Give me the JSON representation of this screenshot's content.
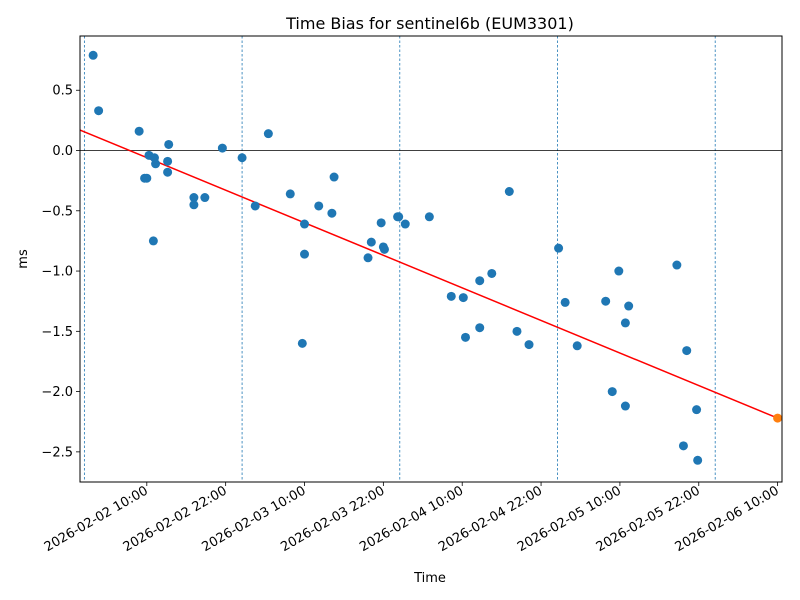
{
  "chart_data": {
    "type": "scatter",
    "title": "Time Bias for sentinel6b (EUM3301)",
    "xlabel": "Time",
    "ylabel": "ms",
    "x_is_time": true,
    "xlim": [
      "2026-02-01T23:50",
      "2026-02-06T10:40"
    ],
    "ylim": [
      -2.75,
      0.95
    ],
    "yticks": [
      -2.5,
      -2.0,
      -1.5,
      -1.0,
      -0.5,
      0.0,
      0.5
    ],
    "ytick_labels": [
      "−2.5",
      "−2.0",
      "−1.5",
      "−1.0",
      "−0.5",
      "0.0",
      "0.5"
    ],
    "xticks": [
      "2026-02-02T10:00",
      "2026-02-02T22:00",
      "2026-02-03T10:00",
      "2026-02-03T22:00",
      "2026-02-04T10:00",
      "2026-02-04T22:00",
      "2026-02-05T10:00",
      "2026-02-05T22:00",
      "2026-02-06T10:00"
    ],
    "xtick_labels": [
      "2026-02-02 10:00",
      "2026-02-02 22:00",
      "2026-02-03 10:00",
      "2026-02-03 22:00",
      "2026-02-04 10:00",
      "2026-02-04 22:00",
      "2026-02-05 10:00",
      "2026-02-05 22:00",
      "2026-02-06 10:00"
    ],
    "vlines": [
      "2026-02-02T00:30",
      "2026-02-03T00:30",
      "2026-02-04T00:30",
      "2026-02-05T00:30",
      "2026-02-06T00:30"
    ],
    "hline_y": 0.0,
    "grid": false,
    "legend": "none",
    "colors": {
      "points": "#1f77b4",
      "fit": "#ff0000",
      "prediction": "#ff7f0e",
      "vlines": "#1f77b4",
      "hline": "#000000"
    },
    "series": [
      {
        "type": "scatter",
        "points": [
          [
            "2026-02-02T01:50",
            0.79
          ],
          [
            "2026-02-02T02:40",
            0.33
          ],
          [
            "2026-02-02T08:50",
            0.16
          ],
          [
            "2026-02-02T09:40",
            -0.23
          ],
          [
            "2026-02-02T10:00",
            -0.23
          ],
          [
            "2026-02-02T10:20",
            -0.04
          ],
          [
            "2026-02-02T11:10",
            -0.06
          ],
          [
            "2026-02-02T11:20",
            -0.11
          ],
          [
            "2026-02-02T11:00",
            -0.75
          ],
          [
            "2026-02-02T13:20",
            0.05
          ],
          [
            "2026-02-02T13:10",
            -0.09
          ],
          [
            "2026-02-02T13:10",
            -0.18
          ],
          [
            "2026-02-02T17:10",
            -0.39
          ],
          [
            "2026-02-02T17:10",
            -0.45
          ],
          [
            "2026-02-02T18:50",
            -0.39
          ],
          [
            "2026-02-02T21:30",
            0.02
          ],
          [
            "2026-02-03T00:30",
            -0.06
          ],
          [
            "2026-02-03T02:30",
            -0.46
          ],
          [
            "2026-02-03T04:30",
            0.14
          ],
          [
            "2026-02-03T07:50",
            -0.36
          ],
          [
            "2026-02-03T10:00",
            -0.61
          ],
          [
            "2026-02-03T10:00",
            -0.86
          ],
          [
            "2026-02-03T09:40",
            -1.6
          ],
          [
            "2026-02-03T12:10",
            -0.46
          ],
          [
            "2026-02-03T14:10",
            -0.52
          ],
          [
            "2026-02-03T14:30",
            -0.22
          ],
          [
            "2026-02-03T19:40",
            -0.89
          ],
          [
            "2026-02-03T20:10",
            -0.76
          ],
          [
            "2026-02-03T21:40",
            -0.6
          ],
          [
            "2026-02-03T22:00",
            -0.8
          ],
          [
            "2026-02-03T22:10",
            -0.82
          ],
          [
            "2026-02-04T00:10",
            -0.55
          ],
          [
            "2026-02-04T00:20",
            -0.55
          ],
          [
            "2026-02-04T01:20",
            -0.61
          ],
          [
            "2026-02-04T05:00",
            -0.55
          ],
          [
            "2026-02-04T08:20",
            -1.21
          ],
          [
            "2026-02-04T10:10",
            -1.22
          ],
          [
            "2026-02-04T10:30",
            -1.55
          ],
          [
            "2026-02-04T12:40",
            -1.08
          ],
          [
            "2026-02-04T12:40",
            -1.47
          ],
          [
            "2026-02-04T14:30",
            -1.02
          ],
          [
            "2026-02-04T17:10",
            -0.34
          ],
          [
            "2026-02-04T18:20",
            -1.5
          ],
          [
            "2026-02-04T20:10",
            -1.61
          ],
          [
            "2026-02-05T00:40",
            -0.81
          ],
          [
            "2026-02-05T01:40",
            -1.26
          ],
          [
            "2026-02-05T03:30",
            -1.62
          ],
          [
            "2026-02-05T07:50",
            -1.25
          ],
          [
            "2026-02-05T08:50",
            -2.0
          ],
          [
            "2026-02-05T09:50",
            -1.0
          ],
          [
            "2026-02-05T10:50",
            -2.12
          ],
          [
            "2026-02-05T10:50",
            -1.43
          ],
          [
            "2026-02-05T11:20",
            -1.29
          ],
          [
            "2026-02-05T18:40",
            -0.95
          ],
          [
            "2026-02-05T19:40",
            -2.45
          ],
          [
            "2026-02-05T20:10",
            -1.66
          ],
          [
            "2026-02-05T21:40",
            -2.15
          ],
          [
            "2026-02-05T21:50",
            -2.57
          ]
        ]
      },
      {
        "type": "line",
        "points": [
          [
            "2026-02-01T23:50",
            0.17
          ],
          [
            "2026-02-06T10:00",
            -2.22
          ]
        ]
      },
      {
        "type": "scatter",
        "points": [
          [
            "2026-02-06T10:00",
            -2.22
          ]
        ]
      }
    ]
  }
}
